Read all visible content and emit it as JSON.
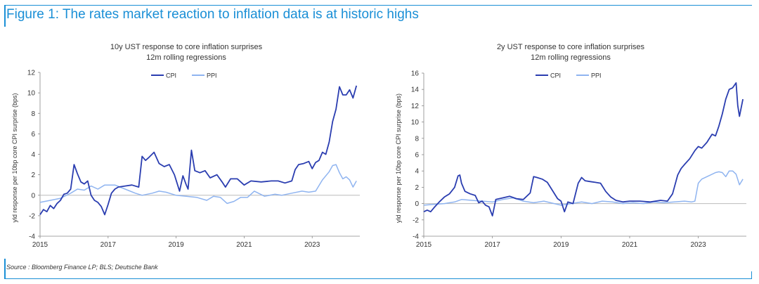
{
  "figure": {
    "title": "Figure 1: The rates market reaction to inflation data is at historic highs",
    "source": "Source : Bloomberg Finance LP; BLS; Deutsche Bank",
    "accent_color": "#1a8fd6"
  },
  "chart_data": [
    {
      "type": "line",
      "title": "10y UST response to core inflation surprises",
      "subtitle": "12m rolling regressions",
      "xlabel": "",
      "ylabel": "yld response per 10bp core CPI surprise (bps)",
      "xlim": [
        2015,
        2024.4
      ],
      "ylim": [
        -4,
        12
      ],
      "yticks": [
        -4,
        -2,
        0,
        2,
        4,
        6,
        8,
        10,
        12
      ],
      "xticks": [
        "2015",
        "2017",
        "2019",
        "2021",
        "2023"
      ],
      "legend": "top-center",
      "series": [
        {
          "name": "CPI",
          "color": "#2a3db0",
          "x": [
            2015.0,
            2015.1,
            2015.2,
            2015.3,
            2015.4,
            2015.5,
            2015.6,
            2015.7,
            2015.8,
            2015.9,
            2016.0,
            2016.1,
            2016.2,
            2016.3,
            2016.4,
            2016.5,
            2016.6,
            2016.7,
            2016.8,
            2016.9,
            2017.0,
            2017.1,
            2017.2,
            2017.3,
            2017.5,
            2017.7,
            2017.9,
            2018.0,
            2018.1,
            2018.2,
            2018.35,
            2018.5,
            2018.65,
            2018.8,
            2018.95,
            2019.1,
            2019.2,
            2019.3,
            2019.35,
            2019.45,
            2019.55,
            2019.7,
            2019.85,
            2020.0,
            2020.2,
            2020.35,
            2020.45,
            2020.6,
            2020.8,
            2021.0,
            2021.2,
            2021.5,
            2021.8,
            2022.0,
            2022.2,
            2022.4,
            2022.5,
            2022.6,
            2022.75,
            2022.9,
            2023.0,
            2023.1,
            2023.2,
            2023.3,
            2023.4,
            2023.5,
            2023.6,
            2023.7,
            2023.8,
            2023.9,
            2024.0,
            2024.1,
            2024.2,
            2024.3
          ],
          "values": [
            -1.9,
            -1.4,
            -1.6,
            -1.0,
            -1.3,
            -0.8,
            -0.5,
            0.1,
            0.2,
            0.6,
            3.0,
            2.1,
            1.3,
            1.1,
            1.4,
            0.0,
            -0.5,
            -0.7,
            -1.1,
            -1.9,
            -0.9,
            0.2,
            0.6,
            0.8,
            0.9,
            1.0,
            0.8,
            3.8,
            3.4,
            3.7,
            4.2,
            3.1,
            2.8,
            3.0,
            2.0,
            0.4,
            1.9,
            1.0,
            0.6,
            4.4,
            2.4,
            2.2,
            2.4,
            1.7,
            2.0,
            1.3,
            0.8,
            1.6,
            1.6,
            1.0,
            1.4,
            1.3,
            1.4,
            1.4,
            1.2,
            1.4,
            2.5,
            3.0,
            3.1,
            3.3,
            2.6,
            3.2,
            3.4,
            4.2,
            4.0,
            5.2,
            7.2,
            8.4,
            10.6,
            9.8,
            9.8,
            10.3,
            9.5,
            10.7
          ]
        },
        {
          "name": "PPI",
          "color": "#8fb4f0",
          "x": [
            2015.0,
            2015.3,
            2015.6,
            2015.9,
            2016.1,
            2016.3,
            2016.5,
            2016.7,
            2016.9,
            2017.2,
            2017.5,
            2017.8,
            2018.0,
            2018.3,
            2018.5,
            2018.7,
            2019.0,
            2019.3,
            2019.6,
            2019.9,
            2020.1,
            2020.3,
            2020.5,
            2020.7,
            2020.9,
            2021.1,
            2021.3,
            2021.6,
            2021.9,
            2022.1,
            2022.4,
            2022.7,
            2022.9,
            2023.1,
            2023.3,
            2023.5,
            2023.6,
            2023.7,
            2023.8,
            2023.9,
            2024.0,
            2024.1,
            2024.2,
            2024.3
          ],
          "values": [
            -0.7,
            -0.5,
            -0.3,
            0.2,
            0.6,
            0.5,
            0.9,
            0.6,
            1.0,
            1.0,
            0.6,
            0.2,
            0.0,
            0.2,
            0.4,
            0.3,
            0.0,
            -0.1,
            -0.2,
            -0.5,
            -0.1,
            -0.2,
            -0.8,
            -0.6,
            -0.2,
            -0.2,
            0.4,
            -0.1,
            0.1,
            0.0,
            0.2,
            0.4,
            0.3,
            0.4,
            1.5,
            2.3,
            2.9,
            3.0,
            2.2,
            1.6,
            1.8,
            1.5,
            0.8,
            1.4
          ]
        }
      ]
    },
    {
      "type": "line",
      "title": "2y UST response to core inflation surprises",
      "subtitle": "12m rolling regressions",
      "xlabel": "",
      "ylabel": "yld response per 10bp core CPI surprise (bps)",
      "xlim": [
        2015,
        2024.4
      ],
      "ylim": [
        -4,
        16
      ],
      "yticks": [
        -4,
        -2,
        0,
        2,
        4,
        6,
        8,
        10,
        12,
        14,
        16
      ],
      "xticks": [
        "2015",
        "2017",
        "2019",
        "2021",
        "2023"
      ],
      "legend": "top-center",
      "series": [
        {
          "name": "CPI",
          "color": "#2a3db0",
          "x": [
            2015.0,
            2015.1,
            2015.2,
            2015.3,
            2015.45,
            2015.6,
            2015.75,
            2015.9,
            2016.0,
            2016.05,
            2016.1,
            2016.2,
            2016.35,
            2016.5,
            2016.6,
            2016.7,
            2016.8,
            2016.9,
            2017.0,
            2017.1,
            2017.3,
            2017.5,
            2017.7,
            2017.9,
            2018.1,
            2018.2,
            2018.3,
            2018.45,
            2018.6,
            2018.75,
            2018.9,
            2019.0,
            2019.1,
            2019.2,
            2019.35,
            2019.5,
            2019.6,
            2019.7,
            2019.85,
            2020.0,
            2020.15,
            2020.3,
            2020.45,
            2020.6,
            2020.8,
            2021.0,
            2021.3,
            2021.6,
            2021.9,
            2022.1,
            2022.25,
            2022.4,
            2022.5,
            2022.6,
            2022.75,
            2022.9,
            2023.0,
            2023.1,
            2023.25,
            2023.4,
            2023.5,
            2023.6,
            2023.7,
            2023.8,
            2023.9,
            2024.0,
            2024.1,
            2024.15,
            2024.2,
            2024.3
          ],
          "values": [
            -1.0,
            -0.8,
            -1.0,
            -0.5,
            0.2,
            0.8,
            1.2,
            2.0,
            3.4,
            3.5,
            2.5,
            1.5,
            1.2,
            1.0,
            0.1,
            0.3,
            -0.2,
            -0.4,
            -1.5,
            0.5,
            0.7,
            0.9,
            0.6,
            0.5,
            1.3,
            3.3,
            3.2,
            3.0,
            2.6,
            1.6,
            0.6,
            0.3,
            -1.0,
            0.2,
            0.0,
            2.5,
            3.2,
            2.8,
            2.7,
            2.6,
            2.5,
            1.5,
            0.8,
            0.4,
            0.2,
            0.3,
            0.3,
            0.2,
            0.4,
            0.3,
            1.2,
            3.5,
            4.3,
            4.8,
            5.5,
            6.5,
            7.0,
            6.8,
            7.5,
            8.5,
            8.3,
            9.5,
            11.0,
            12.8,
            14.0,
            14.2,
            14.8,
            12.0,
            10.7,
            12.8
          ]
        },
        {
          "name": "PPI",
          "color": "#8fb4f0",
          "x": [
            2015.0,
            2015.3,
            2015.6,
            2015.9,
            2016.1,
            2016.4,
            2016.7,
            2017.0,
            2017.3,
            2017.6,
            2017.9,
            2018.2,
            2018.5,
            2018.8,
            2019.0,
            2019.3,
            2019.6,
            2019.9,
            2020.2,
            2020.5,
            2020.8,
            2021.1,
            2021.4,
            2021.7,
            2022.0,
            2022.3,
            2022.6,
            2022.8,
            2022.9,
            2023.0,
            2023.1,
            2023.3,
            2023.5,
            2023.6,
            2023.7,
            2023.8,
            2023.9,
            2024.0,
            2024.1,
            2024.2,
            2024.3
          ],
          "values": [
            -0.2,
            -0.1,
            0.0,
            0.2,
            0.5,
            0.4,
            0.3,
            0.2,
            0.5,
            0.7,
            0.3,
            0.1,
            0.3,
            0.0,
            -0.2,
            0.0,
            0.2,
            0.0,
            0.3,
            0.2,
            0.0,
            0.1,
            0.0,
            0.2,
            0.1,
            0.2,
            0.3,
            0.2,
            0.3,
            2.5,
            3.0,
            3.4,
            3.8,
            3.9,
            3.8,
            3.3,
            4.0,
            4.0,
            3.6,
            2.3,
            3.0
          ]
        }
      ]
    }
  ]
}
